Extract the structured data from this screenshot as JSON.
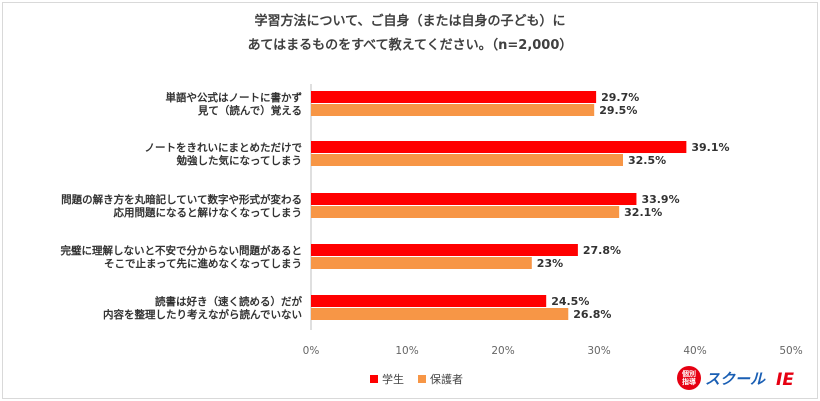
{
  "chart_data": {
    "type": "bar",
    "orientation": "horizontal",
    "title": [
      "学習方法について、ご自身（または自身の子ども）に",
      "あてはまるものをすべて教えてください。（n=2,000）"
    ],
    "categories": [
      [
        "単語や公式はノートに書かず",
        "見て（読んで）覚える"
      ],
      [
        "ノートをきれいにまとめただけで",
        "勉強した気になってしまう"
      ],
      [
        "問題の解き方を丸暗記していて数字や形式が変わる",
        "応用問題になると解けなくなってしまう"
      ],
      [
        "完璧に理解しないと不安で分からない問題があると",
        "そこで止まって先に進めなくなってしまう"
      ],
      [
        "読書は好き（速く読める）だが",
        "内容を整理したり考えながら読んでいない"
      ]
    ],
    "series": [
      {
        "name": "学生",
        "color": "#ff0000",
        "values": [
          29.7,
          39.1,
          33.9,
          27.8,
          24.5
        ],
        "labels": [
          "29.7%",
          "39.1%",
          "33.9%",
          "27.8%",
          "24.5%"
        ]
      },
      {
        "name": "保護者",
        "color": "#f79646",
        "values": [
          29.5,
          32.5,
          32.1,
          23,
          26.8
        ],
        "labels": [
          "29.5%",
          "32.5%",
          "32.1%",
          "23%",
          "26.8%"
        ]
      }
    ],
    "xlim": [
      0,
      50
    ],
    "ticks": [
      0,
      10,
      20,
      30,
      40,
      50
    ],
    "tick_labels": [
      "0%",
      "10%",
      "20%",
      "30%",
      "40%",
      "50%"
    ],
    "grid": false,
    "legend": "bottom"
  },
  "logo": {
    "text": "スクール",
    "mark": "IE",
    "badge": [
      "個別",
      "指導"
    ]
  }
}
